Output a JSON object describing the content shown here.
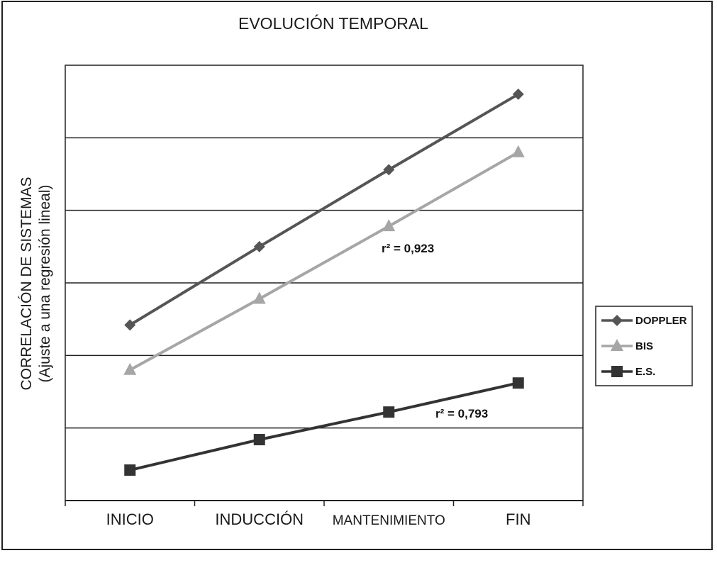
{
  "chart_data": {
    "type": "line",
    "title": "EVOLUCIÓN TEMPORAL",
    "ylabel": "CORRELACIÓN DE SISTEMAS",
    "ylabel_sub": "(Ajuste a una regresión lineal)",
    "xlabel": "",
    "categories": [
      "INICIO",
      "INDUCCIÓN",
      "MANTENIMIENTO",
      "FIN"
    ],
    "ylim": [
      0,
      6
    ],
    "grid": true,
    "legend_position": "right",
    "series": [
      {
        "name": "DOPPLER",
        "values": [
          2.42,
          3.5,
          4.56,
          5.6
        ],
        "marker": "diamond",
        "color": "#555555"
      },
      {
        "name": "BIS",
        "values": [
          1.8,
          2.78,
          3.78,
          4.8
        ],
        "marker": "triangle",
        "color": "#a6a6a6"
      },
      {
        "name": "E.S.",
        "values": [
          0.42,
          0.84,
          1.22,
          1.62
        ],
        "marker": "square",
        "color": "#333333"
      }
    ],
    "annotations": [
      {
        "text": "r² = 0,923",
        "series": "BIS"
      },
      {
        "text": "r² = 0,793",
        "series": "E.S."
      }
    ]
  }
}
